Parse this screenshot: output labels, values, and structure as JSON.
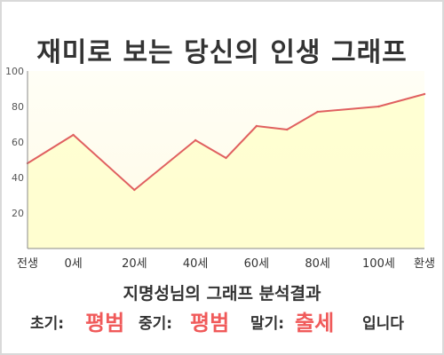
{
  "title": "재미로 보는 당신의 인생 그래프",
  "chart_data": {
    "type": "area",
    "title": "재미로 보는 당신의 인생 그래프",
    "x_ticks": [
      "전생",
      "0세",
      "20세",
      "40세",
      "60세",
      "80세",
      "100세",
      "환생"
    ],
    "x_tick_values": [
      -15,
      0,
      20,
      40,
      60,
      80,
      100,
      115
    ],
    "y_ticks": [
      20,
      40,
      60,
      80,
      100
    ],
    "xlim": [
      -15,
      115
    ],
    "ylim": [
      0,
      100
    ],
    "grid": false,
    "series": [
      {
        "x": [
          -15,
          0,
          20,
          40,
          50,
          60,
          70,
          80,
          100,
          115
        ],
        "y": [
          48,
          64,
          33,
          61,
          51,
          69,
          67,
          77,
          80,
          87
        ]
      }
    ],
    "colors": {
      "line": "#e06060",
      "fill": "#ffffc8",
      "plot_bg": "#fffef0"
    }
  },
  "summary": "지명성님의 그래프 분석결과",
  "result": {
    "early_label": "초기:",
    "early_value": "평범",
    "middle_label": "중기:",
    "middle_value": "평범",
    "late_label": "말기:",
    "late_value": "출세",
    "ending": "입니다"
  }
}
